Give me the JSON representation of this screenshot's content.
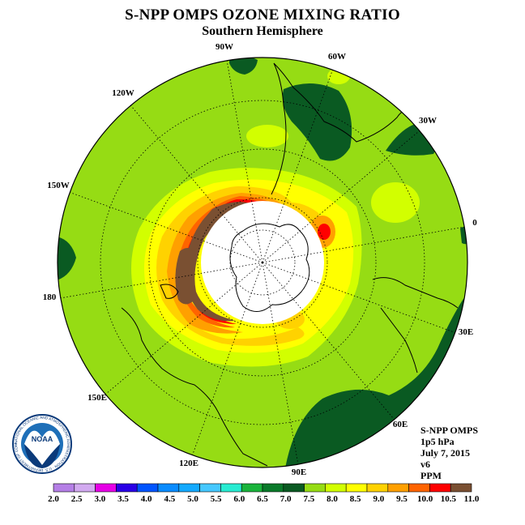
{
  "title": "S-NPP OMPS OZONE MIXING RATIO",
  "subtitle": "Southern Hemisphere",
  "longitude_labels": [
    "90W",
    "60W",
    "30W",
    "0",
    "30E",
    "60E",
    "90E",
    "120E",
    "150E",
    "180",
    "150W",
    "120W"
  ],
  "info": {
    "instrument": "S-NPP OMPS",
    "level": "1p5 hPa",
    "date": "July 7, 2015",
    "version": "v6",
    "units": "PPM"
  },
  "logo": {
    "text": "NOAA",
    "ring_text": "NATIONAL OCEANIC AND ATMOSPHERIC ADMINISTRATION · U.S. DEPARTMENT OF COMMERCE"
  },
  "colorbar": {
    "ticks": [
      "2.0",
      "2.5",
      "3.0",
      "3.5",
      "4.0",
      "4.5",
      "5.0",
      "5.5",
      "6.0",
      "6.5",
      "7.0",
      "7.5",
      "8.0",
      "8.5",
      "9.0",
      "9.5",
      "10.0",
      "10.5",
      "11.0"
    ],
    "colors": [
      "#b57fe6",
      "#d2aaf0",
      "#e600e6",
      "#2a00e6",
      "#0055ff",
      "#0a8cff",
      "#14aaff",
      "#46c8ff",
      "#28ecd2",
      "#1ab43c",
      "#0a7a2a",
      "#0a5a22",
      "#96dc14",
      "#d2ff00",
      "#ffff00",
      "#ffd200",
      "#ffa000",
      "#ff6400",
      "#ff0000",
      "#7a5032"
    ]
  },
  "colors": {
    "base_field": "#96dc14",
    "dark_green": "#0a5a22",
    "green_highlight": "#d2ff00"
  }
}
